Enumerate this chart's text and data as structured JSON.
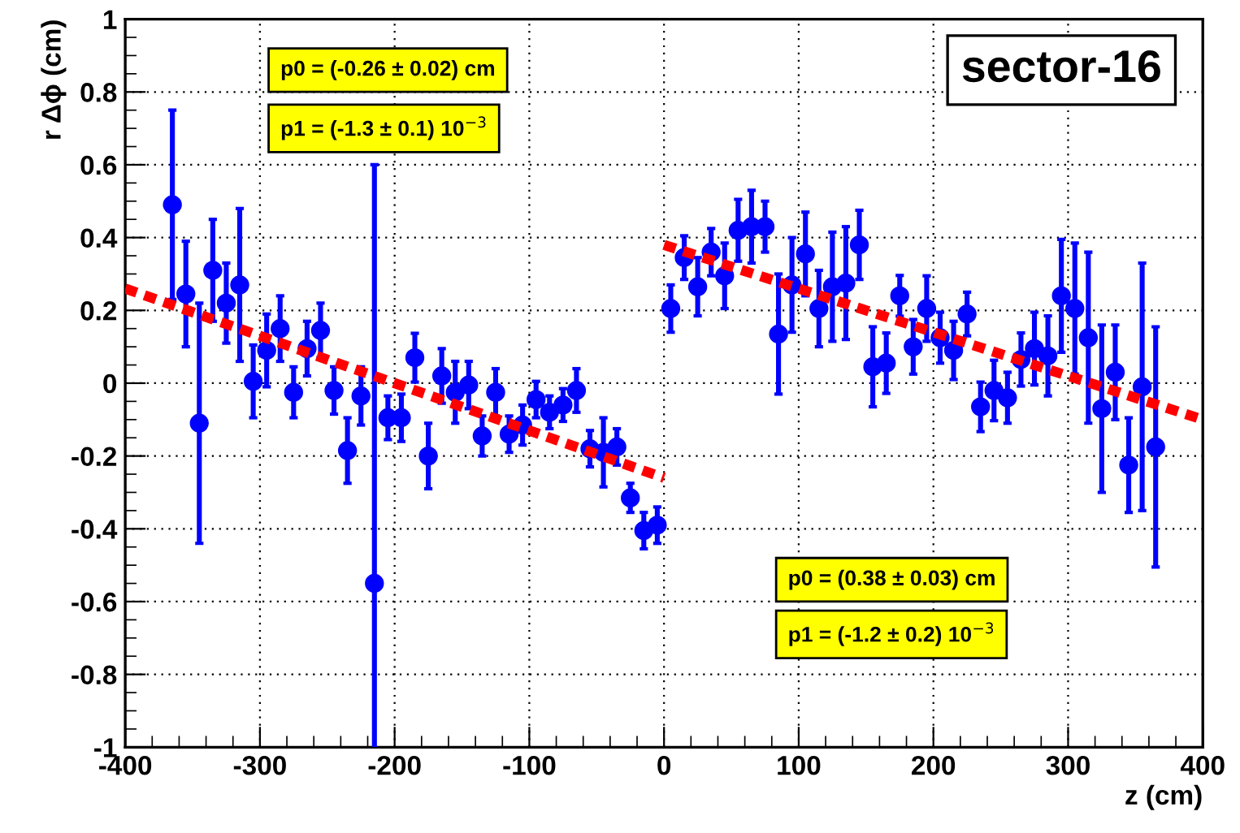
{
  "chart_data": {
    "type": "scatter",
    "title": "sector-16",
    "xlabel": "z (cm)",
    "ylabel": "r Δϕ (cm)",
    "annotations": [
      "p0 = (-0.26 ± 0.02) cm",
      "p1 = (-1.3 ± 0.1) 10$^{−3}$",
      "p0 = (0.38 ± 0.03) cm",
      "p1 = (-1.2 ± 0.2) 10$^{−3}$"
    ],
    "xlim": [
      -400,
      400
    ],
    "xticks": [
      -400,
      -300,
      -200,
      -100,
      0,
      100,
      200,
      300,
      400
    ],
    "ylim": [
      -1,
      1
    ],
    "yticks": [
      -1,
      -0.8,
      -0.6,
      -0.4,
      -0.2,
      0,
      0.2,
      0.4,
      0.6,
      0.8,
      1
    ],
    "grid": true,
    "legend": false,
    "series": [
      {
        "color": "#0000ff",
        "marker": "circle",
        "x": [
          -365,
          -355,
          -345,
          -335,
          -325,
          -315,
          -305,
          -295,
          -285,
          -275,
          -265,
          -255,
          -245,
          -235,
          -225,
          -215,
          -205,
          -195,
          -185,
          -175,
          -165,
          -155,
          -145,
          -135,
          -125,
          -115,
          -105,
          -95,
          -85,
          -75,
          -65,
          -55,
          -45,
          -35,
          -25,
          -15,
          -5,
          5,
          15,
          25,
          35,
          45,
          55,
          65,
          75,
          85,
          95,
          105,
          115,
          125,
          135,
          145,
          155,
          165,
          175,
          185,
          195,
          205,
          215,
          225,
          235,
          245,
          255,
          265,
          275,
          285,
          295,
          305,
          315,
          325,
          335,
          345,
          355,
          365
        ],
        "values": [
          0.49,
          0.245,
          -0.11,
          0.31,
          0.22,
          0.27,
          0.005,
          0.09,
          0.15,
          -0.025,
          0.095,
          0.145,
          -0.02,
          -0.185,
          -0.035,
          -0.55,
          -0.095,
          -0.095,
          0.07,
          -0.2,
          0.02,
          -0.025,
          -0.005,
          -0.145,
          -0.025,
          -0.14,
          -0.115,
          -0.045,
          -0.08,
          -0.06,
          -0.02,
          -0.18,
          -0.19,
          -0.175,
          -0.315,
          -0.405,
          -0.39,
          0.205,
          0.345,
          0.265,
          0.36,
          0.295,
          0.42,
          0.43,
          0.43,
          0.135,
          0.27,
          0.355,
          0.205,
          0.265,
          0.275,
          0.38,
          0.045,
          0.055,
          0.24,
          0.1,
          0.205,
          0.125,
          0.09,
          0.19,
          -0.065,
          -0.02,
          -0.04,
          0.065,
          0.095,
          0.075,
          0.24,
          0.205,
          0.125,
          -0.07,
          0.03,
          -0.225,
          -0.01,
          -0.175
        ],
        "errors": [
          0.26,
          0.145,
          0.33,
          0.14,
          0.11,
          0.21,
          0.1,
          0.1,
          0.09,
          0.07,
          0.075,
          0.075,
          0.065,
          0.09,
          0.08,
          [
            -1,
            0.6
          ],
          0.06,
          0.065,
          0.067,
          0.09,
          0.075,
          0.085,
          0.065,
          0.055,
          0.065,
          0.05,
          0.055,
          0.05,
          0.045,
          0.045,
          0.06,
          0.05,
          0.095,
          0.05,
          0.04,
          0.05,
          0.05,
          0.065,
          0.06,
          0.08,
          0.065,
          0.09,
          0.085,
          0.1,
          0.07,
          0.165,
          0.13,
          0.115,
          0.105,
          0.15,
          0.155,
          0.095,
          0.11,
          0.083,
          0.056,
          0.075,
          0.09,
          0.07,
          0.08,
          0.06,
          0.068,
          0.083,
          0.07,
          0.073,
          0.1,
          0.11,
          0.155,
          0.18,
          0.235,
          0.23,
          0.13,
          0.13,
          0.34,
          0.33
        ]
      },
      {
        "type": "line",
        "color": "#ff0000",
        "line_style": "dashed",
        "x": [
          -400,
          0
        ],
        "values": [
          0.26,
          -0.26
        ]
      },
      {
        "type": "line",
        "color": "#ff0000",
        "line_style": "dashed",
        "x": [
          0,
          400
        ],
        "values": [
          0.38,
          -0.1
        ]
      }
    ]
  }
}
